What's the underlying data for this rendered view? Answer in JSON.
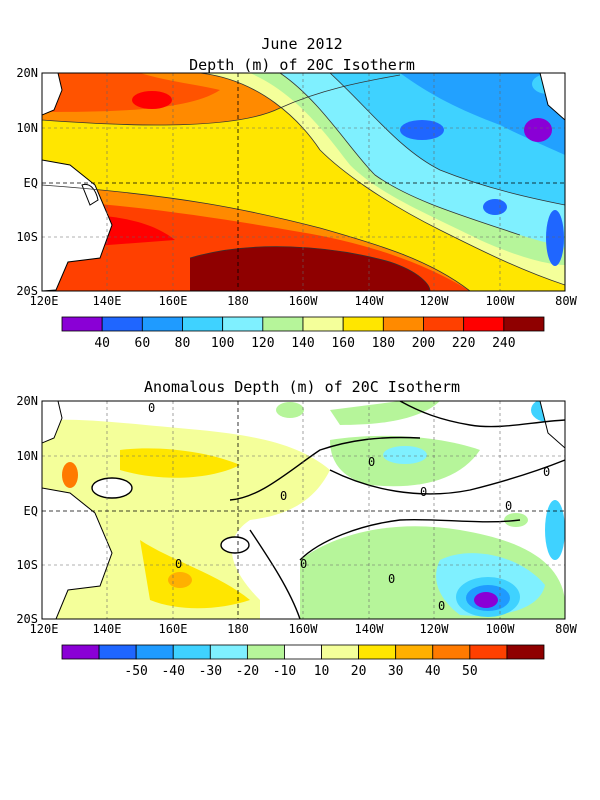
{
  "header": {
    "title": "June 2012"
  },
  "panels": [
    {
      "title": "Depth (m) of 20C Isotherm",
      "colorbar": {
        "colors": [
          "#8a00d6",
          "#1f66ff",
          "#1f9bff",
          "#3fd2ff",
          "#7ff0ff",
          "#b6f59a",
          "#f4ff9a",
          "#ffe600",
          "#ff8a00",
          "#ff4000",
          "#ff0000",
          "#8f0000"
        ],
        "labels": [
          "40",
          "60",
          "80",
          "100",
          "120",
          "140",
          "160",
          "180",
          "200",
          "220",
          "240"
        ]
      }
    },
    {
      "title": "Anomalous Depth (m) of 20C Isotherm",
      "colorbar": {
        "colors": [
          "#8a00d6",
          "#1f66ff",
          "#1f9bff",
          "#3fd2ff",
          "#7ff0ff",
          "#b6f59a",
          "#ffffff",
          "#f4ff9a",
          "#ffe600",
          "#ffb000",
          "#ff7a00",
          "#ff4000",
          "#8f0000"
        ],
        "labels": [
          "-50",
          "-40",
          "-30",
          "-20",
          "-10",
          "10",
          "20",
          "30",
          "40",
          "50"
        ]
      },
      "contour_labels": [
        "0",
        "0",
        "0",
        "0",
        "0",
        "0",
        "0",
        "0",
        "0",
        "0"
      ]
    }
  ],
  "axes": {
    "x_ticks": [
      "120E",
      "140E",
      "160E",
      "180",
      "160W",
      "140W",
      "120W",
      "100W",
      "80W"
    ],
    "y_ticks": [
      "20N",
      "10N",
      "EQ",
      "10S",
      "20S"
    ]
  }
}
